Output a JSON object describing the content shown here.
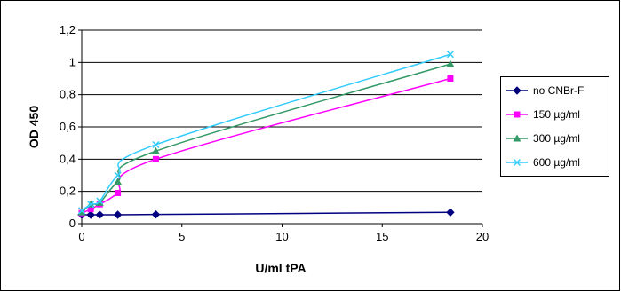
{
  "chart_data": {
    "type": "line",
    "title": "",
    "xlabel": "U/ml tPA",
    "ylabel": "OD 450",
    "xlim": [
      0,
      20
    ],
    "ylim": [
      0,
      1.2
    ],
    "x_ticks": [
      "0",
      "5",
      "10",
      "15",
      "20"
    ],
    "y_ticks": [
      "0",
      "0,2",
      "0,4",
      "0,6",
      "0,8",
      "1",
      "1,2"
    ],
    "grid": "horizontal",
    "legend_position": "right",
    "series": [
      {
        "name": "no CNBr-F",
        "color": "#000080",
        "marker": "diamond",
        "x": [
          0,
          0.45,
          0.9,
          1.8,
          3.7,
          18.4
        ],
        "y": [
          0.055,
          0.055,
          0.055,
          0.055,
          0.057,
          0.07
        ]
      },
      {
        "name": "150 µg/ml",
        "color": "#ff00ff",
        "marker": "square",
        "x": [
          0,
          0.45,
          0.9,
          1.8,
          3.7,
          18.4
        ],
        "y": [
          0.065,
          0.09,
          0.12,
          0.19,
          0.4,
          0.9
        ]
      },
      {
        "name": "300 µg/ml",
        "color": "#339966",
        "marker": "triangle",
        "x": [
          0,
          0.45,
          0.9,
          1.8,
          3.7,
          18.4
        ],
        "y": [
          0.07,
          0.12,
          0.13,
          0.26,
          0.45,
          0.99
        ]
      },
      {
        "name": "600 µg/ml",
        "color": "#33ccff",
        "marker": "x",
        "x": [
          0,
          0.45,
          0.9,
          1.8,
          3.7,
          18.4
        ],
        "y": [
          0.08,
          0.12,
          0.14,
          0.3,
          0.49,
          1.05
        ]
      }
    ]
  }
}
